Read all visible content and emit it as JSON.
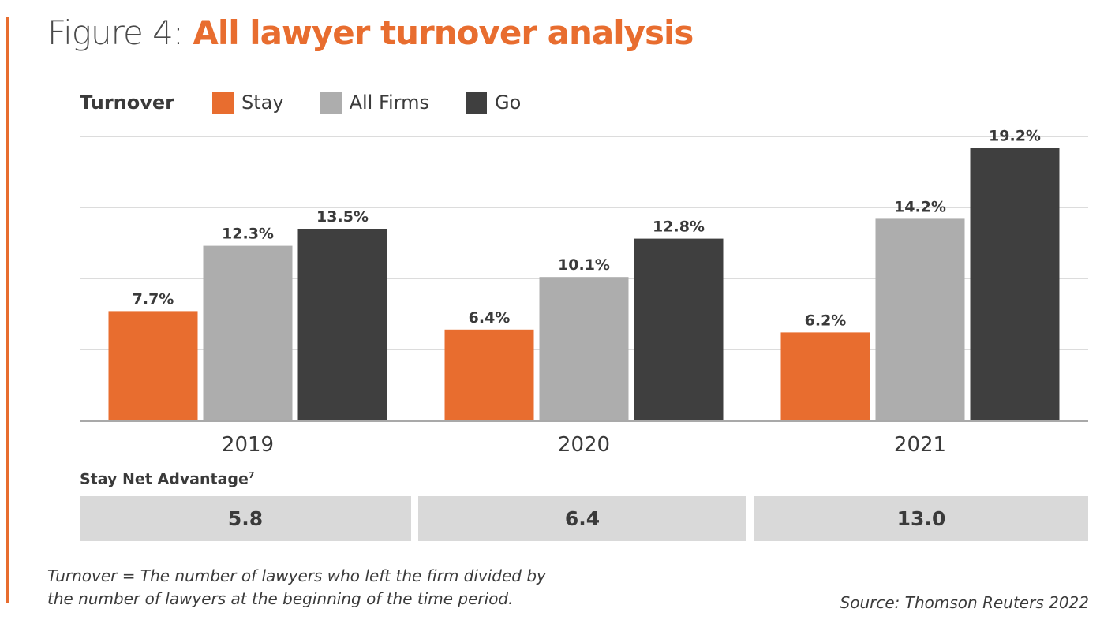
{
  "figure": {
    "prefix": "Figure 4: ",
    "title": "All lawyer turnover analysis"
  },
  "colors": {
    "accent": "#e86d2f",
    "stay": "#e86d2f",
    "all_firms": "#adadad",
    "go": "#3f3f3f",
    "grid": "#dcdcdc",
    "axis": "#a9a9a9",
    "advantage_box": "#d9d9d9",
    "text": "#3a3a3a"
  },
  "legend": {
    "label": "Turnover",
    "items": [
      {
        "name": "Stay",
        "color": "#e86d2f"
      },
      {
        "name": "All Firms",
        "color": "#adadad"
      },
      {
        "name": "Go",
        "color": "#3f3f3f"
      }
    ]
  },
  "chart_data": {
    "type": "bar",
    "title": "All lawyer turnover analysis",
    "xlabel": "",
    "ylabel": "Turnover",
    "categories": [
      "2019",
      "2020",
      "2021"
    ],
    "series": [
      {
        "name": "Stay",
        "values": [
          7.7,
          6.4,
          6.2
        ],
        "labels": [
          "7.7%",
          "6.4%",
          "6.2%"
        ]
      },
      {
        "name": "All Firms",
        "values": [
          12.3,
          10.1,
          14.2
        ],
        "labels": [
          "12.3%",
          "10.1%",
          "14.2%"
        ]
      },
      {
        "name": "Go",
        "values": [
          13.5,
          12.8,
          19.2
        ],
        "labels": [
          "13.5%",
          "12.8%",
          "19.2%"
        ]
      }
    ],
    "ylim": [
      0,
      20
    ],
    "gridlines": [
      5,
      10,
      15,
      20
    ],
    "grid": true,
    "legend_position": "top-left"
  },
  "advantage": {
    "label": "Stay Net Advantage",
    "footnote": "7",
    "values": [
      "5.8",
      "6.4",
      "13.0"
    ]
  },
  "note": {
    "line1": "Turnover = The number of lawyers who left the firm divided by",
    "line2": "the number of lawyers at the beginning of the time period."
  },
  "source": "Source: Thomson Reuters 2022"
}
